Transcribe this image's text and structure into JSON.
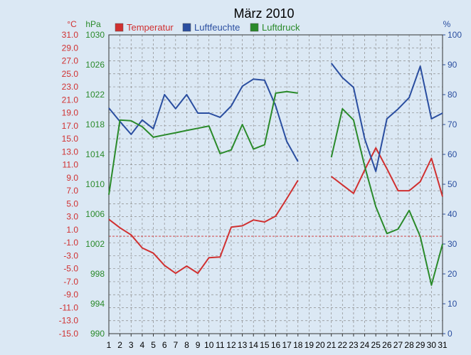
{
  "chart_data": {
    "type": "line",
    "title": "März 2010",
    "categories": [
      "1",
      "2",
      "3",
      "4",
      "5",
      "6",
      "7",
      "8",
      "9",
      "10",
      "11",
      "12",
      "13",
      "14",
      "15",
      "16",
      "17",
      "18",
      "19",
      "20",
      "21",
      "22",
      "23",
      "24",
      "25",
      "26",
      "27",
      "28",
      "29",
      "30",
      "31"
    ],
    "axes": {
      "temperature": {
        "unit_label": "°C",
        "range": [
          -15,
          31
        ],
        "ticks": [
          "31.0",
          "29.0",
          "27.0",
          "25.0",
          "23.0",
          "21.0",
          "19.0",
          "17.0",
          "15.0",
          "13.0",
          "11.0",
          "9.0",
          "7.0",
          "5.0",
          "3.0",
          "1.0",
          "-1.0",
          "-3.0",
          "-5.0",
          "-7.0",
          "-9.0",
          "-11.0",
          "-13.0",
          "-15.0"
        ],
        "color": "#d03030"
      },
      "pressure": {
        "unit_label": "hPa",
        "range": [
          990,
          1030
        ],
        "ticks": [
          "1030",
          "1026",
          "1022",
          "1018",
          "1014",
          "1010",
          "1006",
          "1002",
          "998",
          "994",
          "990"
        ],
        "color": "#2a8a2a"
      },
      "humidity": {
        "unit_label": "%",
        "range": [
          0,
          100
        ],
        "ticks": [
          "100",
          "90",
          "80",
          "70",
          "60",
          "50",
          "40",
          "30",
          "20",
          "10",
          "0"
        ],
        "color": "#2a4ea0"
      }
    },
    "reference_line_celsius": 0,
    "grid": true,
    "legend_position": "top",
    "series": [
      {
        "name": "Temperatur",
        "axis": "temperature",
        "color": "#d03030",
        "values": [
          2.6,
          1.3,
          0.2,
          -1.8,
          -2.6,
          -4.5,
          -5.7,
          -4.6,
          -5.7,
          -3.3,
          -3.2,
          1.4,
          1.6,
          2.5,
          2.2,
          3.1,
          5.8,
          8.6,
          null,
          null,
          9.2,
          7.9,
          6.6,
          10.2,
          13.6,
          10.4,
          7.0,
          7.0,
          8.4,
          12.0,
          6.1
        ]
      },
      {
        "name": "Luftfeuchte",
        "axis": "humidity",
        "color": "#2a4ea0",
        "values": [
          75.5,
          71.0,
          66.7,
          71.5,
          68.6,
          80.0,
          75.3,
          80.0,
          73.8,
          73.8,
          72.4,
          76.2,
          82.8,
          85.2,
          84.8,
          76.2,
          64.3,
          57.6,
          null,
          null,
          90.5,
          85.7,
          82.4,
          65.2,
          54.3,
          71.9,
          75.2,
          79.0,
          89.5,
          71.9,
          73.8
        ]
      },
      {
        "name": "Luftdruck",
        "axis": "pressure",
        "color": "#2a8a2a",
        "values": [
          1008.6,
          1018.6,
          1018.5,
          1017.7,
          1016.3,
          1016.6,
          1016.9,
          1017.2,
          1017.5,
          1017.8,
          1014.1,
          1014.6,
          1018.0,
          1014.7,
          1015.3,
          1022.2,
          1022.4,
          1022.2,
          null,
          null,
          1013.6,
          1020.1,
          1018.6,
          1012.4,
          1007.0,
          1003.4,
          1004.0,
          1006.5,
          1003.0,
          996.5,
          1002.0
        ]
      }
    ]
  }
}
